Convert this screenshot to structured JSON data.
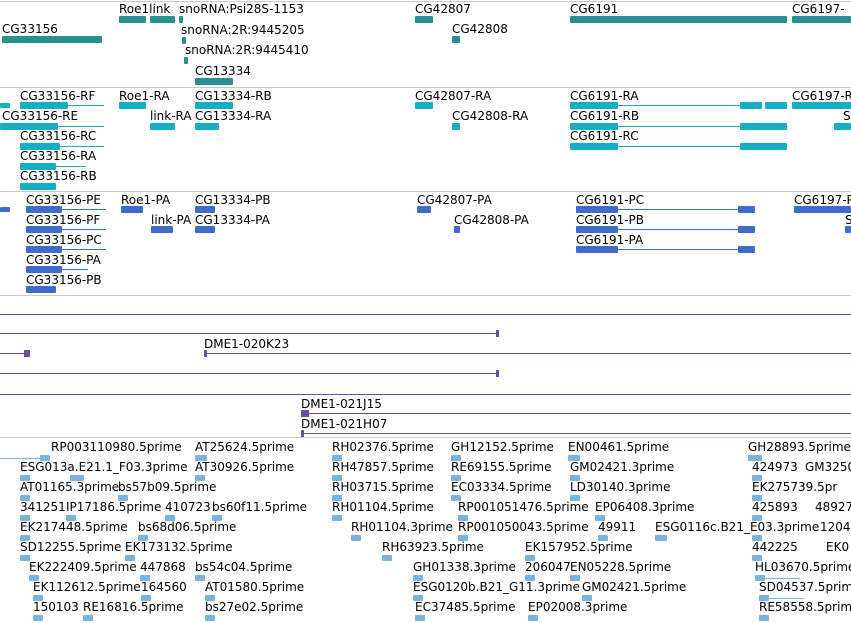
{
  "colors": {
    "gene": "#2a8f8f",
    "rna": "#15aec4",
    "protein": "#3f6ccb",
    "clone": "#6a4fa0",
    "est": "#7ab3dc",
    "separator": "#c8c8c8"
  },
  "tracks": {
    "gene": {
      "labels": {
        "cg33156": "CG33156",
        "roe1link": "Roe1link",
        "psi28s": "snoRNA:Psi28S-1153",
        "snorna_9445205": "snoRNA:2R:9445205",
        "snorna_9445410": "snoRNA:2R:9445410",
        "cg13334": "CG13334",
        "cg42807": "CG42807",
        "cg42808": "CG42808",
        "cg6191": "CG6191",
        "cg6197": "CG6197-"
      }
    },
    "transcript": {
      "labels": {
        "cg33156_rf": "CG33156-RF",
        "cg33156_re": "CG33156-RE",
        "cg33156_rc": "CG33156-RC",
        "cg33156_ra": "CG33156-RA",
        "cg33156_rb": "CG33156-RB",
        "roe1_ra": "Roe1-RA",
        "link_ra": "link-RA",
        "cg13334_rb": "CG13334-RB",
        "cg13334_ra": "CG13334-RA",
        "cg42807_ra": "CG42807-RA",
        "cg42808_ra": "CG42808-RA",
        "cg6191_ra": "CG6191-RA",
        "cg6191_rb": "CG6191-RB",
        "cg6191_rc": "CG6191-RC",
        "cg6197_r": "CG6197-R",
        "s_edge": "S-"
      }
    },
    "protein": {
      "labels": {
        "cg33156_pe": "CG33156-PE",
        "cg33156_pf": "CG33156-PF",
        "cg33156_pc": "CG33156-PC",
        "cg33156_pa": "CG33156-PA",
        "cg33156_pb": "CG33156-PB",
        "roe1_pa": "Roe1-PA",
        "link_pa": "link-PA",
        "cg13334_pb": "CG13334-PB",
        "cg13334_pa": "CG13334-PA",
        "cg42807_pa": "CG42807-PA",
        "cg42808_pa": "CG42808-PA",
        "cg6191_pc": "CG6191-PC",
        "cg6191_pb": "CG6191-PB",
        "cg6191_pa": "CG6191-PA",
        "cg6197_p": "CG6197-P",
        "s_edge": "S"
      }
    },
    "clone": {
      "labels": {
        "dme1_020k23": "DME1-020K23",
        "dme1_021j15": "DME1-021J15",
        "dme1_021h07": "DME1-021H07"
      }
    },
    "est": {
      "labels": {
        "e1": "RP003110980.5prime",
        "e2": "AT25624.5prime",
        "e3": "RH02376.5prime",
        "e4": "GH12152.5prime",
        "e5": "EN00461.5prime",
        "e6": "GH28893.5prime",
        "e7": "ESG013a.E21.1_F03.3prime",
        "e8": "AT30926.5prime",
        "e9": "RH47857.5prime",
        "e10": "RE69155.5prime",
        "e11": "GM02421.3prime",
        "e12": "424973",
        "e13": "GM3250",
        "e14": "AT01165.3prime",
        "e15": "bs57b09.5prime",
        "e16": "RH03715.5prime",
        "e17": "EC03334.5prime",
        "e18": "LD30140.3prime",
        "e19": "EK275739.5pr",
        "e20": "341251",
        "e21": "IP17186.5prime",
        "e22": "410723",
        "e23": "bs60f11.5prime",
        "e24": "RH01104.5prime",
        "e25": "RP001051476.5prime",
        "e26": "EP06408.3prime",
        "e27": "425893",
        "e28": "48927",
        "e29": "EK217448.5prime",
        "e30": "bs68d06.5prime",
        "e31": "RH01104.3prime",
        "e32": "RP001050043.5prime",
        "e33": "49911",
        "e34": "ESG0116c.B21_E03.3prime",
        "e35": "1204",
        "e36": "SD12255.5prime",
        "e37": "EK173132.5prime",
        "e38": "RH63923.5prime",
        "e39": "EK157952.5prime",
        "e40": "442225",
        "e41": "EK0",
        "e42": "EK222409.5prime",
        "e43": "447868",
        "e44": "bs54c04.5prime",
        "e45": "GH01338.3prime",
        "e46": "206047",
        "e47": "EN05228.5prime",
        "e48": "HL03670.5prime",
        "e49": "EK112612.5prime",
        "e50": "164560",
        "e51": "AT01580.5prime",
        "e52": "ESG0120b.B21_G11.3prime",
        "e53": "GM02421.5prime",
        "e54": "SD04537.5prime",
        "e55": "150103",
        "e56": "RE16816.5prime",
        "e57": "bs27e02.5prime",
        "e58": "EC37485.5prime",
        "e59": "EP02008.3prime",
        "e60": "RE58558.5prime"
      }
    }
  }
}
